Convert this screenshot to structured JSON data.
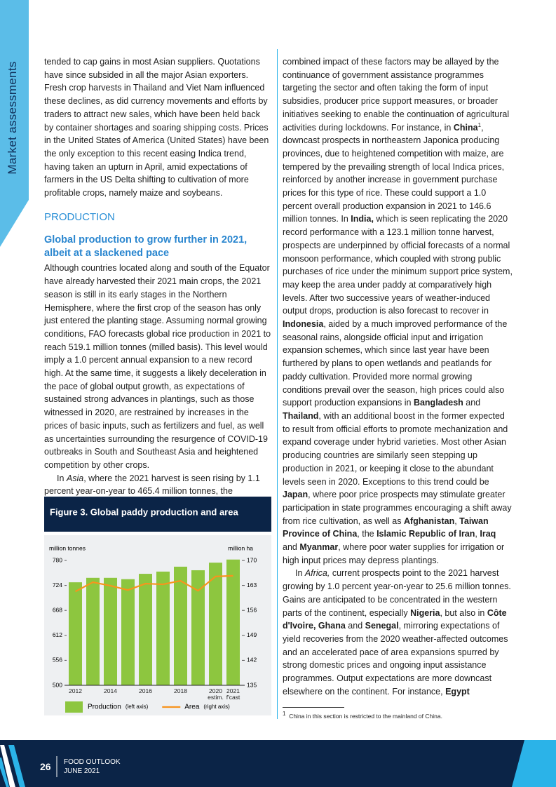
{
  "side_tab": "Market assessments",
  "left_column": [
    {
      "kind": "paragraph",
      "indent": false,
      "runs": [
        "tended to cap gains in most Asian suppliers. Quotations have since subsided in all the major Asian exporters. Fresh crop harvests in Thailand and Viet Nam influenced these declines, as did currency movements and efforts by traders to attract new sales, which have been held back by container shortages and soaring shipping costs. Prices in the United States of America (United States) have been the only exception to this recent easing Indica trend, having taken an upturn in April, amid expectations of farmers in the US Delta shifting to cultivation of more profitable crops, namely maize and soybeans."
      ]
    },
    {
      "kind": "section",
      "text": "PRODUCTION"
    },
    {
      "kind": "heading",
      "text": "Global production to grow further in 2021, albeit at a slackened pace"
    },
    {
      "kind": "paragraph",
      "indent": false,
      "runs": [
        "Although countries located along and south of the Equator have already harvested their 2021 main crops, the 2021 season is still in its early stages in the Northern Hemisphere, where the first crop of the season has only just entered the planting stage. Assuming normal growing conditions, FAO forecasts global rice production in 2021 to reach 519.1 million tonnes (milled basis). This level would imply a 1.0 percent annual expansion to a new record high. At the same time, it suggests a likely deceleration in the pace of global output growth, as expectations of sustained strong advances in plantings, such as those witnessed in 2020, are restrained by increases in the prices of basic inputs, such as fertilizers and fuel, as well as uncertainties surrounding the resurgence of COVID-19 outbreaks in South and Southeast Asia and heightened competition by other crops."
      ]
    },
    {
      "kind": "paragraph",
      "indent": true,
      "runs": [
        "In ",
        {
          "text": "Asia",
          "style": "italic"
        },
        ", where the 2021 harvest is seen rising by 1.1 percent year-on-year to 465.4 million tonnes, the"
      ]
    }
  ],
  "right_column": [
    {
      "kind": "paragraph",
      "indent": false,
      "runs": [
        "combined impact of these factors may be allayed by the continuance of government assistance programmes targeting the sector and often taking the form of input subsidies, producer price support measures, or broader initiatives seeking to enable the continuation of agricultural activities during lockdowns. For instance, in ",
        {
          "text": "China",
          "style": "bold"
        },
        {
          "text": "1",
          "style": "superscript"
        },
        ", downcast prospects in northeastern Japonica producing provinces, due to heightened competition with maize, are tempered by the prevailing strength of local Indica prices, reinforced by another increase in government purchase prices for this type of rice. These could support a 1.0 percent overall production expansion in 2021 to 146.6 million tonnes. In ",
        {
          "text": "India,",
          "style": "bold"
        },
        " which is seen replicating the 2020 record performance with a 123.1 million tonne harvest, prospects are underpinned by official forecasts of a normal monsoon performance, which coupled with strong public purchases of rice under the minimum support price system, may keep the area under paddy at comparatively high levels. After two successive years of weather-induced output drops, production is also forecast to recover in ",
        {
          "text": "Indonesia",
          "style": "bold"
        },
        ", aided by a much improved performance of the seasonal rains, alongside official input and irrigation expansion schemes, which since last year have been furthered by plans to open wetlands and peatlands for paddy cultivation. Provided more normal growing conditions prevail over the season, high prices could also support production expansions in ",
        {
          "text": "Bangladesh",
          "style": "bold"
        },
        " and ",
        {
          "text": "Thailand",
          "style": "bold"
        },
        ", with an additional boost in the former expected to result from official efforts to promote mechanization and expand coverage under hybrid varieties. Most other Asian producing countries are similarly seen stepping up production in 2021, or keeping it close to the abundant levels seen in 2020. Exceptions to this trend could be ",
        {
          "text": "Japan",
          "style": "bold"
        },
        ", where poor price prospects may stimulate greater participation in state programmes encouraging a shift away from rice cultivation, as well as ",
        {
          "text": "Afghanistan",
          "style": "bold"
        },
        ", ",
        {
          "text": "Taiwan Province of China",
          "style": "bold"
        },
        ", the ",
        {
          "text": "Islamic Republic of Iran",
          "style": "bold"
        },
        ", ",
        {
          "text": "Iraq",
          "style": "bold"
        },
        " and ",
        {
          "text": "Myanmar",
          "style": "bold"
        },
        ", where poor water supplies for irrigation or high input prices may depress plantings."
      ]
    },
    {
      "kind": "paragraph",
      "indent": true,
      "runs": [
        "In ",
        {
          "text": "Africa,",
          "style": "italic"
        },
        " current prospects point to the 2021 harvest growing by 1.0 percent year-on-year to 25.6 million tonnes. Gains are anticipated to be concentrated in the western parts of the continent, especially ",
        {
          "text": "Nigeria",
          "style": "bold"
        },
        ", but also in ",
        {
          "text": "Côte d'Ivoire, Ghana",
          "style": "bold"
        },
        " and ",
        {
          "text": "Senegal",
          "style": "bold"
        },
        ", mirroring expectations of yield recoveries from the 2020 weather-affected outcomes and an accelerated pace of area expansions spurred by strong domestic prices and ongoing input assistance programmes. Output expectations are more downcast elsewhere on the continent. For instance, ",
        {
          "text": "Egypt",
          "style": "bold"
        }
      ]
    }
  ],
  "figure": {
    "title": "Figure 3. Global paddy production and area",
    "chart_data": {
      "type": "combo",
      "y_label": "million tonnes",
      "y2_label": "million ha",
      "categories": [
        "2012",
        null,
        "2014",
        null,
        "2016",
        null,
        "2018",
        null,
        "2020\nestim.",
        "2021\nf'cast"
      ],
      "ylim": [
        500,
        780
      ],
      "yticks": [
        500,
        556,
        612,
        668,
        724,
        780
      ],
      "y2lim": [
        135,
        170
      ],
      "y2ticks": [
        135,
        142,
        149,
        156,
        163,
        170
      ],
      "grid": false,
      "series": [
        {
          "name": "Production",
          "legend_note": "(left axis)",
          "type": "bar",
          "color": "#8dc63f",
          "values": [
            731,
            741,
            741,
            738,
            750,
            755,
            766,
            758,
            775,
            782
          ]
        },
        {
          "name": "Area",
          "legend_note": "(right axis)",
          "type": "line",
          "axis": "y2",
          "color": "#f7941d",
          "values": [
            161.3,
            163.9,
            162.9,
            161.7,
            163.5,
            163.3,
            164.3,
            161.5,
            165.5,
            165.7
          ]
        }
      ]
    }
  },
  "footnote": {
    "marker": "1",
    "text": "China in this section is restricted to the mainland of China."
  },
  "footer": {
    "page_number": "26",
    "publication": "FOOD OUTLOOK",
    "date": "JUNE 2021"
  }
}
